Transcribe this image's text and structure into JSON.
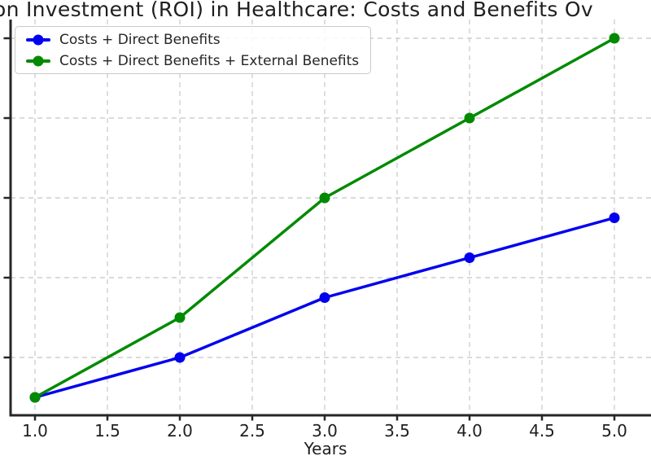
{
  "chart_data": {
    "type": "line",
    "title": "on Investment (ROI) in Healthcare: Costs and Benefits Ov",
    "xlabel": "Years",
    "ylabel": "",
    "x": [
      1,
      2,
      3,
      4,
      5
    ],
    "x_tick_labels": [
      "1.0",
      "1.5",
      "2.0",
      "2.5",
      "3.0",
      "3.5",
      "4.0",
      "4.5",
      "5.0"
    ],
    "xlim": [
      0.83,
      5.25
    ],
    "ylim": [
      0.28,
      5.23
    ],
    "y_gridline_values": [
      1,
      2,
      3,
      4,
      5
    ],
    "y_tick_labels": [],
    "y_axis_labels_note": "y-axis tick labels are cropped outside the left edge; series values given in gridline units",
    "grid": true,
    "grid_style": "dashed light-gray",
    "legend_position": "upper left",
    "series": [
      {
        "name": "Costs + Direct Benefits",
        "color": "#0000ee",
        "marker": "circle",
        "values": [
          0.5,
          1.0,
          1.75,
          2.25,
          2.75
        ]
      },
      {
        "name": "Costs + Direct Benefits + External Benefits",
        "color": "#008a00",
        "marker": "circle",
        "values": [
          0.5,
          1.5,
          3.0,
          4.0,
          5.0
        ]
      }
    ],
    "axis_color": "#262626",
    "text_color": "#1f1f1f"
  }
}
